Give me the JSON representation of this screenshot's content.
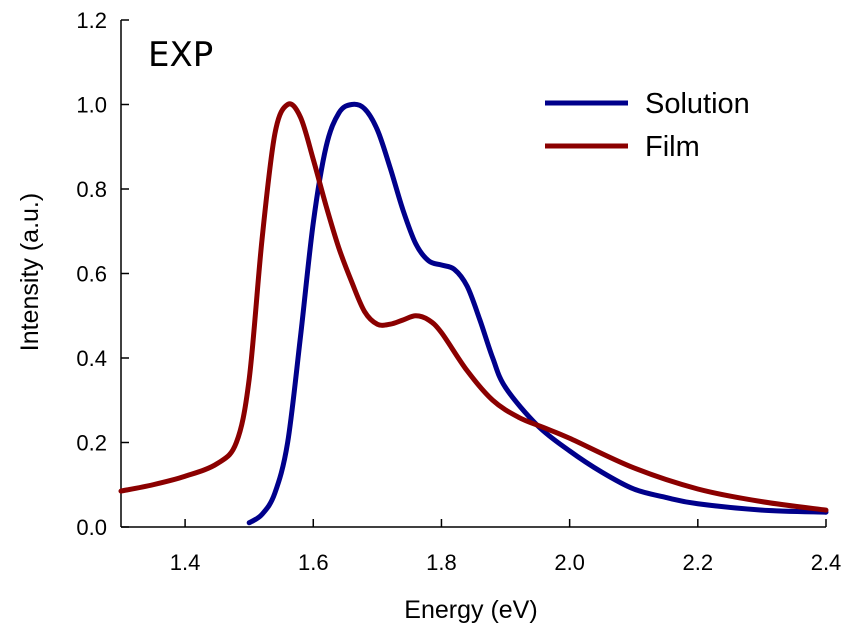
{
  "chart_data": {
    "type": "line",
    "annotation": "EXP",
    "xlabel": "Energy (eV)",
    "ylabel": "Intensity (a.u.)",
    "xlim": [
      1.3,
      2.4
    ],
    "ylim": [
      0.0,
      1.2
    ],
    "x_ticks": [
      1.4,
      1.6,
      1.8,
      2.0,
      2.2,
      2.4
    ],
    "x_tick_labels": [
      "1.4",
      "1.6",
      "1.8",
      "2.0",
      "2.2",
      "2.4"
    ],
    "y_ticks": [
      0.0,
      0.2,
      0.4,
      0.6,
      0.8,
      1.0,
      1.2
    ],
    "y_tick_labels": [
      "0.0",
      "0.2",
      "0.4",
      "0.6",
      "0.8",
      "1.0",
      "1.2"
    ],
    "grid": false,
    "legend_position": "top-right",
    "series": [
      {
        "name": "Solution",
        "color": "#00008B",
        "x": [
          1.5,
          1.52,
          1.54,
          1.56,
          1.58,
          1.6,
          1.62,
          1.64,
          1.66,
          1.68,
          1.7,
          1.72,
          1.74,
          1.76,
          1.78,
          1.8,
          1.82,
          1.84,
          1.86,
          1.88,
          1.9,
          1.95,
          2.0,
          2.05,
          2.1,
          2.15,
          2.2,
          2.3,
          2.4
        ],
        "y": [
          0.01,
          0.03,
          0.08,
          0.2,
          0.45,
          0.72,
          0.9,
          0.98,
          1.0,
          0.99,
          0.94,
          0.85,
          0.75,
          0.67,
          0.63,
          0.62,
          0.61,
          0.57,
          0.49,
          0.4,
          0.33,
          0.24,
          0.18,
          0.13,
          0.09,
          0.07,
          0.055,
          0.04,
          0.035
        ]
      },
      {
        "name": "Film",
        "color": "#8B0000",
        "x": [
          1.3,
          1.35,
          1.4,
          1.45,
          1.48,
          1.5,
          1.52,
          1.54,
          1.56,
          1.58,
          1.6,
          1.62,
          1.64,
          1.66,
          1.68,
          1.7,
          1.72,
          1.74,
          1.76,
          1.78,
          1.8,
          1.84,
          1.88,
          1.92,
          1.96,
          2.0,
          2.1,
          2.2,
          2.3,
          2.4
        ],
        "y": [
          0.085,
          0.1,
          0.12,
          0.15,
          0.2,
          0.35,
          0.68,
          0.93,
          1.0,
          0.97,
          0.87,
          0.76,
          0.66,
          0.58,
          0.51,
          0.48,
          0.48,
          0.49,
          0.5,
          0.49,
          0.46,
          0.37,
          0.3,
          0.26,
          0.235,
          0.21,
          0.14,
          0.09,
          0.06,
          0.04
        ]
      }
    ]
  }
}
